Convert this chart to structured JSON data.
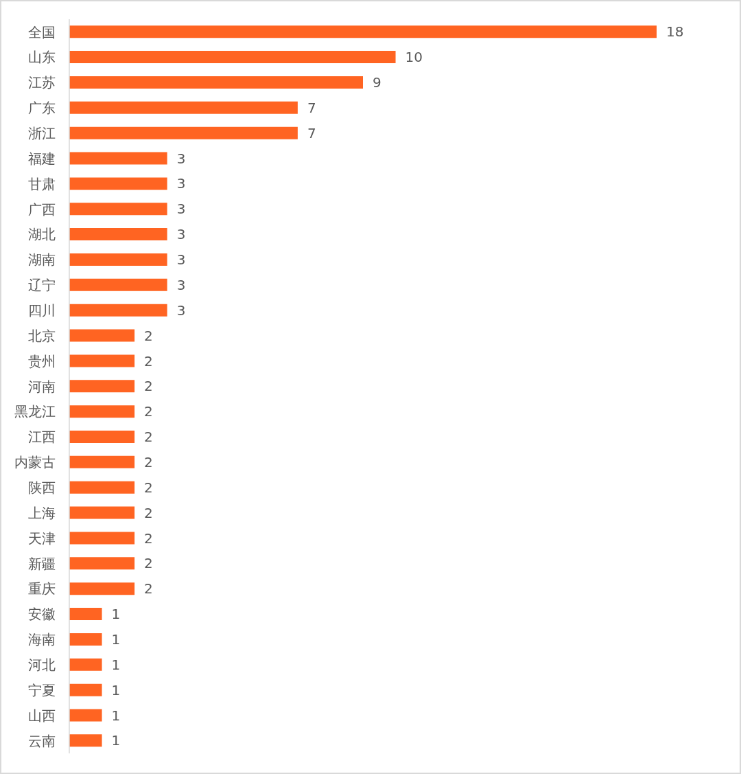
{
  "chart_data": {
    "type": "bar",
    "orientation": "horizontal",
    "categories": [
      "全国",
      "山东",
      "江苏",
      "广东",
      "浙江",
      "福建",
      "甘肃",
      "广西",
      "湖北",
      "湖南",
      "辽宁",
      "四川",
      "北京",
      "贵州",
      "河南",
      "黑龙江",
      "江西",
      "内蒙古",
      "陕西",
      "上海",
      "天津",
      "新疆",
      "重庆",
      "安徽",
      "海南",
      "河北",
      "宁夏",
      "山西",
      "云南"
    ],
    "values": [
      18,
      10,
      9,
      7,
      7,
      3,
      3,
      3,
      3,
      3,
      3,
      3,
      2,
      2,
      2,
      2,
      2,
      2,
      2,
      2,
      2,
      2,
      2,
      1,
      1,
      1,
      1,
      1,
      1
    ],
    "color": "#ff6422",
    "data_labels": true
  }
}
